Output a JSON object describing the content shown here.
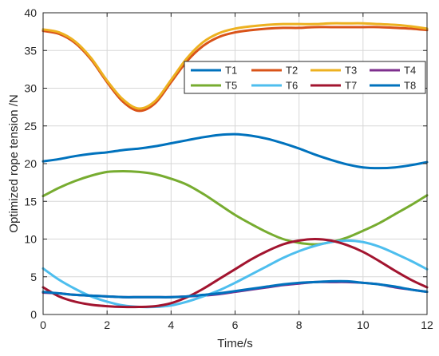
{
  "chart_data": {
    "type": "line",
    "title": "",
    "xlabel": "Time/s",
    "ylabel": "Optimized rope tension /N",
    "xlim": [
      0,
      12
    ],
    "ylim": [
      0,
      40
    ],
    "xticks": [
      0,
      2,
      4,
      6,
      8,
      10,
      12
    ],
    "yticks": [
      0,
      5,
      10,
      15,
      20,
      25,
      30,
      35,
      40
    ],
    "grid": true,
    "legend": {
      "placement": "top-right",
      "columns": 4
    },
    "x": [
      0,
      0.5,
      1,
      1.5,
      2,
      2.5,
      3,
      3.5,
      4,
      4.5,
      5,
      5.5,
      6,
      6.5,
      7,
      7.5,
      8,
      8.5,
      9,
      9.5,
      10,
      10.5,
      11,
      11.5,
      12
    ],
    "series": [
      {
        "name": "T1",
        "color": "#0072BD",
        "values": [
          20.3,
          20.6,
          21.0,
          21.3,
          21.5,
          21.8,
          22.0,
          22.3,
          22.7,
          23.1,
          23.5,
          23.8,
          23.9,
          23.7,
          23.3,
          22.7,
          22.0,
          21.2,
          20.5,
          19.9,
          19.5,
          19.4,
          19.5,
          19.8,
          20.2
        ]
      },
      {
        "name": "T2",
        "color": "#D95319",
        "values": [
          37.6,
          37.2,
          36.0,
          33.8,
          30.8,
          28.2,
          27.0,
          28.0,
          30.8,
          33.6,
          35.6,
          36.8,
          37.4,
          37.7,
          37.9,
          38.0,
          38.0,
          38.1,
          38.1,
          38.1,
          38.1,
          38.1,
          38.0,
          37.9,
          37.7
        ]
      },
      {
        "name": "T3",
        "color": "#EDB120",
        "values": [
          37.8,
          37.4,
          36.2,
          34.0,
          31.0,
          28.5,
          27.3,
          28.3,
          31.1,
          34.0,
          36.1,
          37.3,
          37.9,
          38.2,
          38.4,
          38.5,
          38.5,
          38.5,
          38.6,
          38.6,
          38.6,
          38.5,
          38.4,
          38.2,
          37.9
        ]
      },
      {
        "name": "T4",
        "color": "#7E2F8E",
        "values": [
          2.9,
          2.8,
          2.6,
          2.5,
          2.4,
          2.3,
          2.3,
          2.3,
          2.3,
          2.4,
          2.5,
          2.7,
          3.0,
          3.3,
          3.6,
          3.9,
          4.1,
          4.3,
          4.3,
          4.3,
          4.2,
          4.0,
          3.6,
          3.3,
          3.0
        ]
      },
      {
        "name": "T5",
        "color": "#77AC30",
        "values": [
          15.7,
          16.8,
          17.7,
          18.4,
          18.9,
          19.0,
          18.9,
          18.6,
          18.0,
          17.2,
          16.0,
          14.6,
          13.2,
          12.0,
          10.9,
          10.0,
          9.5,
          9.3,
          9.6,
          10.2,
          11.1,
          12.1,
          13.3,
          14.5,
          15.8
        ]
      },
      {
        "name": "T6",
        "color": "#4DBEEE",
        "values": [
          6.1,
          4.6,
          3.4,
          2.4,
          1.7,
          1.2,
          1.0,
          1.0,
          1.2,
          1.7,
          2.4,
          3.2,
          4.2,
          5.3,
          6.4,
          7.5,
          8.4,
          9.1,
          9.6,
          9.8,
          9.6,
          9.0,
          8.1,
          7.1,
          6.0
        ]
      },
      {
        "name": "T7",
        "color": "#A2142F",
        "values": [
          3.6,
          2.4,
          1.7,
          1.3,
          1.1,
          1.0,
          1.0,
          1.1,
          1.5,
          2.3,
          3.4,
          4.7,
          6.0,
          7.3,
          8.4,
          9.3,
          9.8,
          10.0,
          9.8,
          9.2,
          8.3,
          7.1,
          5.8,
          4.6,
          3.6
        ]
      },
      {
        "name": "T8",
        "color": "#0072BD",
        "values": [
          3.0,
          2.8,
          2.6,
          2.5,
          2.4,
          2.3,
          2.3,
          2.3,
          2.3,
          2.4,
          2.6,
          2.8,
          3.1,
          3.4,
          3.7,
          4.0,
          4.2,
          4.3,
          4.4,
          4.4,
          4.2,
          4.0,
          3.7,
          3.3,
          3.0
        ]
      }
    ]
  }
}
